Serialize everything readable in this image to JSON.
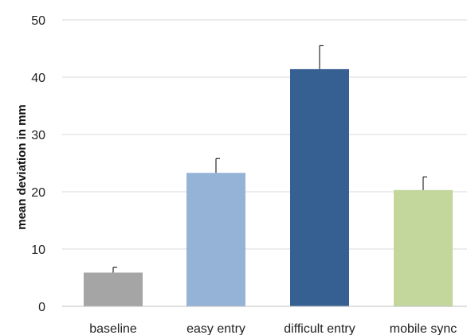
{
  "chart_data": {
    "type": "bar",
    "title": "",
    "xlabel": "",
    "ylabel": "mean deviation in mm",
    "ylim": [
      0,
      50
    ],
    "yticks": [
      0,
      10,
      20,
      30,
      40,
      50
    ],
    "grid": true,
    "categories": [
      "baseline",
      "easy entry",
      "difficult entry",
      "mobile sync"
    ],
    "values": [
      5.9,
      23.3,
      41.4,
      20.3
    ],
    "error_upper": [
      0.9,
      2.5,
      4.1,
      2.3
    ],
    "colors": [
      "#a5a5a5",
      "#95b3d7",
      "#376092",
      "#c3d69b"
    ]
  }
}
